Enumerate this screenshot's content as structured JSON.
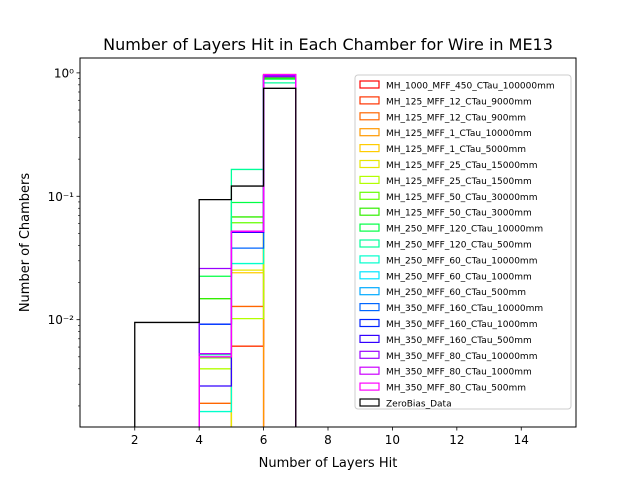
{
  "chart_data": {
    "type": "histogram-step",
    "title": "Number of Layers Hit in Each Chamber for Wire in ME13",
    "xlabel": "Number of Layers Hit",
    "ylabel": "Number of Chambers",
    "xlim": [
      0.3,
      15.7
    ],
    "ylim": [
      0.00135,
      1.32
    ],
    "yscale": "log",
    "x_ticks": [
      2,
      4,
      6,
      8,
      10,
      12,
      14
    ],
    "x_tick_labels": [
      "2",
      "4",
      "6",
      "8",
      "10",
      "12",
      "14"
    ],
    "y_ticks": [
      0.01,
      0.1,
      1
    ],
    "y_tick_labels": [
      "10⁻²",
      "10⁻¹",
      "10⁰"
    ],
    "legend_position": "right",
    "bin_edges": [
      2,
      4,
      5,
      6,
      7
    ],
    "series": [
      {
        "name": "MH_1000_MFF_450_CTau_100000mm",
        "color": "#ff0000",
        "values": [
          0,
          0,
          0,
          0.95
        ]
      },
      {
        "name": "MH_125_MFF_12_CTau_9000mm",
        "color": "#ff3300",
        "values": [
          0,
          0,
          0.0061,
          0.96
        ]
      },
      {
        "name": "MH_125_MFF_12_CTau_900mm",
        "color": "#ff6600",
        "values": [
          0,
          0.0021,
          0.0128,
          0.96
        ]
      },
      {
        "name": "MH_125_MFF_1_CTau_10000mm",
        "color": "#ff9900",
        "values": [
          0,
          0,
          0,
          0.97
        ]
      },
      {
        "name": "MH_125_MFF_1_CTau_5000mm",
        "color": "#ffcc00",
        "values": [
          0,
          0,
          0.024,
          0.95
        ]
      },
      {
        "name": "MH_125_MFF_25_CTau_15000mm",
        "color": "#e6e600",
        "values": [
          0,
          0,
          0.0252,
          0.94
        ]
      },
      {
        "name": "MH_125_MFF_25_CTau_1500mm",
        "color": "#b3ff00",
        "values": [
          0,
          0.004,
          0.0102,
          0.93
        ]
      },
      {
        "name": "MH_125_MFF_50_CTau_30000mm",
        "color": "#66ff00",
        "values": [
          0,
          0.0049,
          0.061,
          0.92
        ]
      },
      {
        "name": "MH_125_MFF_50_CTau_3000mm",
        "color": "#33ee00",
        "values": [
          0,
          0.0148,
          0.068,
          0.91
        ]
      },
      {
        "name": "MH_250_MFF_120_CTau_10000mm",
        "color": "#00ff44",
        "values": [
          0,
          0.0225,
          0.089,
          0.89
        ]
      },
      {
        "name": "MH_250_MFF_120_CTau_500mm",
        "color": "#00ff99",
        "values": [
          0,
          0.0052,
          0.165,
          0.83
        ]
      },
      {
        "name": "MH_250_MFF_60_CTau_10000mm",
        "color": "#00ffcc",
        "values": [
          0,
          0.0018,
          0.0285,
          0.96
        ]
      },
      {
        "name": "MH_250_MFF_60_CTau_1000mm",
        "color": "#00e5ff",
        "values": [
          0,
          0.0092,
          0.051,
          0.94
        ]
      },
      {
        "name": "MH_250_MFF_60_CTau_500mm",
        "color": "#00aaff",
        "values": [
          0,
          0.0092,
          0.051,
          0.94
        ]
      },
      {
        "name": "MH_350_MFF_160_CTau_10000mm",
        "color": "#0066ff",
        "values": [
          0,
          0.0092,
          0.038,
          0.95
        ]
      },
      {
        "name": "MH_350_MFF_160_CTau_1000mm",
        "color": "#0022ff",
        "values": [
          0,
          0.0092,
          0.051,
          0.94
        ]
      },
      {
        "name": "MH_350_MFF_160_CTau_500mm",
        "color": "#3300ff",
        "values": [
          0,
          0.0029,
          0.051,
          0.95
        ]
      },
      {
        "name": "MH_350_MFF_80_CTau_10000mm",
        "color": "#9900ff",
        "values": [
          0,
          0.026,
          0.052,
          0.93
        ]
      },
      {
        "name": "MH_350_MFF_80_CTau_1000mm",
        "color": "#cc00ff",
        "values": [
          0,
          0.0053,
          0.052,
          0.96
        ]
      },
      {
        "name": "MH_350_MFF_80_CTau_500mm",
        "color": "#ff00ff",
        "values": [
          0,
          0.005,
          0.052,
          0.97
        ]
      },
      {
        "name": "ZeroBias_Data",
        "color": "#000000",
        "values": [
          0.0095,
          0.094,
          0.121,
          0.75
        ]
      }
    ]
  }
}
